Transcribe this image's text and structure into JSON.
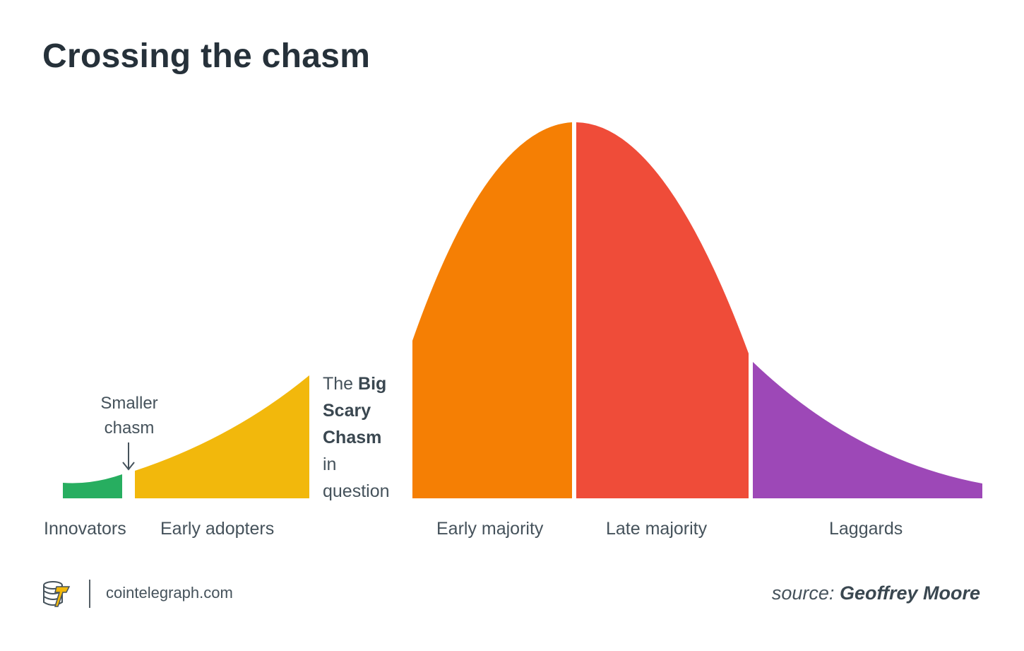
{
  "title": "Crossing the chasm",
  "segments": [
    {
      "label": "Innovators",
      "color": "#27ae60"
    },
    {
      "label": "Early adopters",
      "color": "#f2b80c"
    },
    {
      "label": "Early majority",
      "color": "#f57f04"
    },
    {
      "label": "Late majority",
      "color": "#ef4c39"
    },
    {
      "label": "Laggards",
      "color": "#9d48b7"
    }
  ],
  "annotations": {
    "smaller_chasm_line1": "Smaller",
    "smaller_chasm_line2": "chasm",
    "arrow_glyph": "↓",
    "big_chasm_prefix": "The",
    "big_chasm_bold1": "Big",
    "big_chasm_bold2": "Scary",
    "big_chasm_bold3": "Chasm",
    "big_chasm_suffix1": "in",
    "big_chasm_suffix2": "question"
  },
  "footer": {
    "site": "cointelegraph.com",
    "source_prefix": "source:",
    "source_name": "Geoffrey Moore",
    "logo_icon": "cointelegraph-logo-icon"
  }
}
